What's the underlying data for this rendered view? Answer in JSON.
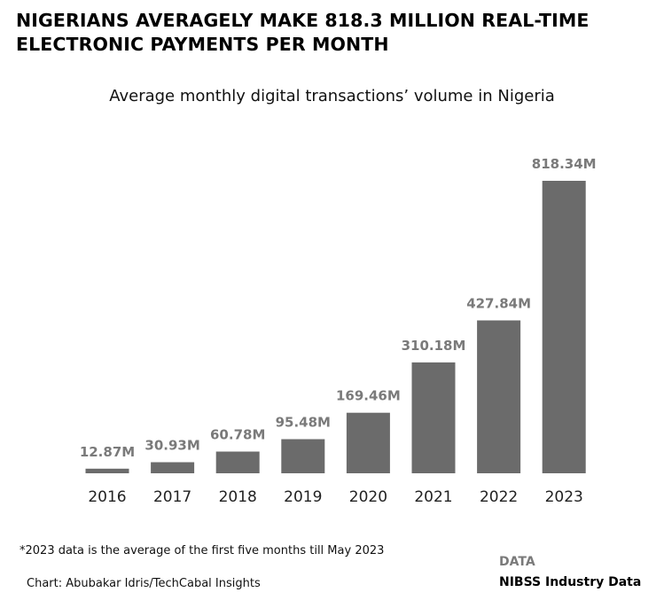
{
  "headline": "NIGERIANS AVERAGELY MAKE 818.3 MILLION REAL-TIME ELECTRONIC PAYMENTS PER MONTH",
  "footnote": "*2023 data is the average of the first five months till May 2023",
  "credit": "Chart: Abubakar Idris/TechCabal Insights",
  "source": {
    "label": "DATA",
    "value": "NIBSS Industry Data"
  },
  "colors": {
    "bar": "#6b6b6b",
    "value_label": "#7a7a7a",
    "text": "#000000"
  },
  "chart_data": {
    "type": "bar",
    "title": "Average monthly digital transactions’ volume in Nigeria",
    "xlabel": "",
    "ylabel": "",
    "categories": [
      "2016",
      "2017",
      "2018",
      "2019",
      "2020",
      "2021",
      "2022",
      "2023"
    ],
    "values": [
      12.87,
      30.93,
      60.78,
      95.48,
      169.46,
      310.18,
      427.84,
      818.34
    ],
    "value_labels": [
      "12.87M",
      "30.93M",
      "60.78M",
      "95.48M",
      "169.46M",
      "310.18M",
      "427.84M",
      "818.34M"
    ],
    "ylim": [
      0,
      818.34
    ],
    "grid": false,
    "legend": "none"
  }
}
